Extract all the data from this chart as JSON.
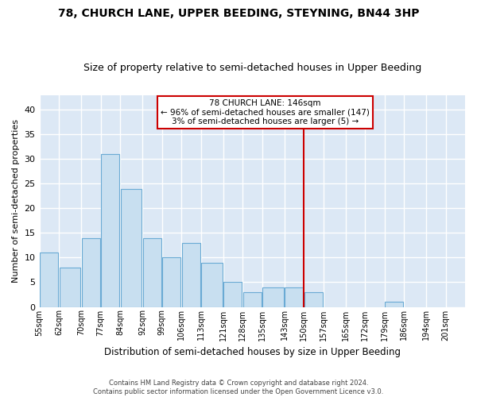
{
  "title": "78, CHURCH LANE, UPPER BEEDING, STEYNING, BN44 3HP",
  "subtitle": "Size of property relative to semi-detached houses in Upper Beeding",
  "xlabel": "Distribution of semi-detached houses by size in Upper Beeding",
  "ylabel": "Number of semi-detached properties",
  "footer1": "Contains HM Land Registry data © Crown copyright and database right 2024.",
  "footer2": "Contains public sector information licensed under the Open Government Licence v3.0.",
  "annotation_title": "78 CHURCH LANE: 146sqm",
  "annotation_line1": "← 96% of semi-detached houses are smaller (147)",
  "annotation_line2": "3% of semi-detached houses are larger (5) →",
  "bar_centers": [
    58.5,
    66,
    73.5,
    80.5,
    88,
    95.5,
    102.5,
    109.5,
    117,
    124.5,
    131.5,
    139,
    146.5,
    153.5,
    161,
    168.5,
    175.5,
    182.5,
    190,
    197.5
  ],
  "bar_widths": [
    7,
    8,
    7,
    7,
    8,
    7,
    7,
    7,
    8,
    7,
    7,
    8,
    7,
    7,
    8,
    7,
    7,
    7,
    8,
    7
  ],
  "bar_heights": [
    11,
    8,
    14,
    31,
    24,
    14,
    10,
    13,
    9,
    5,
    3,
    4,
    4,
    3,
    0,
    0,
    0,
    1,
    0,
    0
  ],
  "tick_labels": [
    "55sqm",
    "62sqm",
    "70sqm",
    "77sqm",
    "84sqm",
    "92sqm",
    "99sqm",
    "106sqm",
    "113sqm",
    "121sqm",
    "128sqm",
    "135sqm",
    "143sqm",
    "150sqm",
    "157sqm",
    "165sqm",
    "172sqm",
    "179sqm",
    "186sqm",
    "194sqm",
    "201sqm"
  ],
  "tick_positions": [
    55,
    62,
    70,
    77,
    84,
    92,
    99,
    106,
    113,
    121,
    128,
    135,
    143,
    150,
    157,
    165,
    172,
    179,
    186,
    194,
    201
  ],
  "bar_color": "#c8dff0",
  "bar_edge_color": "#6aaad4",
  "plot_bg_color": "#dce8f5",
  "grid_color": "#ffffff",
  "vline_x": 150,
  "vline_color": "#cc0000",
  "ylim": [
    0,
    43
  ],
  "xlim": [
    55,
    208
  ],
  "annotation_box_color": "#cc0000",
  "title_fontsize": 10,
  "subtitle_fontsize": 9,
  "yticks": [
    0,
    5,
    10,
    15,
    20,
    25,
    30,
    35,
    40
  ]
}
